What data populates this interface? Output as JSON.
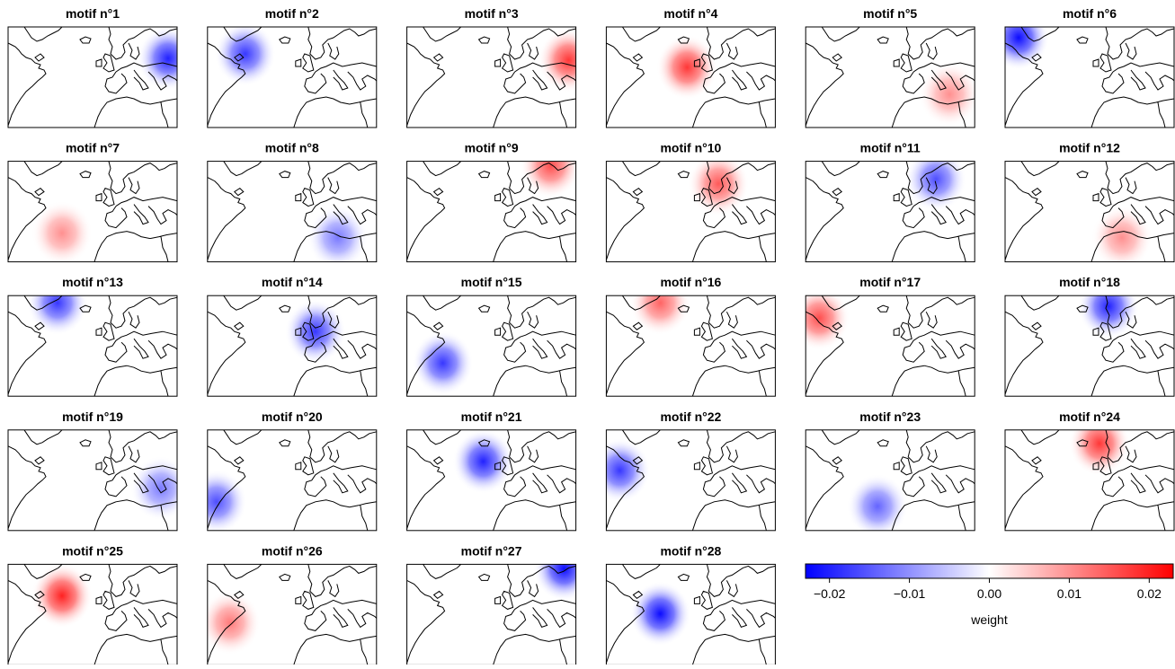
{
  "chart_data": {
    "type": "map-grid",
    "xlim": [
      -80,
      40
    ],
    "ylim": [
      25,
      72
    ],
    "colors": [
      "#0000ff",
      "#ffffff",
      "#ff0000"
    ],
    "clim": [
      -0.023,
      0.023
    ],
    "colorbar_ticks": [
      {
        "value": -0.02,
        "label": "−0.02"
      },
      {
        "value": -0.01,
        "label": "−0.01"
      },
      {
        "value": 0,
        "label": "0.00"
      },
      0.01,
      0.02
    ],
    "colorbar_label": "weight",
    "panels": [
      {
        "title": "motif n°1",
        "lon": 33.6,
        "lat": 57.3,
        "peak": -0.02
      },
      {
        "title": "motif n°2",
        "lon": -53.2,
        "lat": 59.4,
        "peak": -0.018
      },
      {
        "title": "motif n°3",
        "lon": 34.8,
        "lat": 56.5,
        "peak": 0.018
      },
      {
        "title": "motif n°4",
        "lon": -22.6,
        "lat": 53.1,
        "peak": 0.018
      },
      {
        "title": "motif n°5",
        "lon": 22.1,
        "lat": 40.5,
        "peak": 0.01
      },
      {
        "title": "motif n°6",
        "lon": -70.4,
        "lat": 67,
        "peak": -0.022
      },
      {
        "title": "motif n°7",
        "lon": -41.7,
        "lat": 38.4,
        "peak": 0.01
      },
      {
        "title": "motif n°8",
        "lon": 12.5,
        "lat": 36.3,
        "peak": -0.012
      },
      {
        "title": "motif n°9",
        "lon": 22.1,
        "lat": 69.9,
        "peak": 0.016
      },
      {
        "title": "motif n°10",
        "lon": -0.3,
        "lat": 61.5,
        "peak": 0.015
      },
      {
        "title": "motif n°11",
        "lon": 12.5,
        "lat": 63.6,
        "peak": -0.016
      },
      {
        "title": "motif n°12",
        "lon": 3,
        "lat": 36.3,
        "peak": 0.01
      },
      {
        "title": "motif n°13",
        "lon": -44.9,
        "lat": 68.6,
        "peak": -0.018
      },
      {
        "title": "motif n°14",
        "lon": -3.4,
        "lat": 55.2,
        "peak": -0.018
      },
      {
        "title": "motif n°15",
        "lon": -54.5,
        "lat": 40.5,
        "peak": -0.018
      },
      {
        "title": "motif n°16",
        "lon": -41.7,
        "lat": 68.6,
        "peak": 0.014
      },
      {
        "title": "motif n°17",
        "lon": -70.4,
        "lat": 61.5,
        "peak": 0.016
      },
      {
        "title": "motif n°18",
        "lon": -6.6,
        "lat": 67,
        "peak": -0.02
      },
      {
        "title": "motif n°19",
        "lon": 28.5,
        "lat": 44.7,
        "peak": -0.012
      },
      {
        "title": "motif n°20",
        "lon": -73.6,
        "lat": 38.4,
        "peak": -0.016
      },
      {
        "title": "motif n°21",
        "lon": -25.8,
        "lat": 57.3,
        "peak": -0.02
      },
      {
        "title": "motif n°22",
        "lon": -70.4,
        "lat": 53.1,
        "peak": -0.018
      },
      {
        "title": "motif n°23",
        "lon": -29,
        "lat": 36.3,
        "peak": -0.014
      },
      {
        "title": "motif n°24",
        "lon": -13,
        "lat": 65.7,
        "peak": 0.018
      },
      {
        "title": "motif n°25",
        "lon": -41.7,
        "lat": 57.3,
        "peak": 0.02
      },
      {
        "title": "motif n°26",
        "lon": -64,
        "lat": 44.7,
        "peak": 0.012
      },
      {
        "title": "motif n°27",
        "lon": 31.6,
        "lat": 69.9,
        "peak": -0.022
      },
      {
        "title": "motif n°28",
        "lon": -41.7,
        "lat": 48.9,
        "peak": -0.022
      }
    ]
  }
}
